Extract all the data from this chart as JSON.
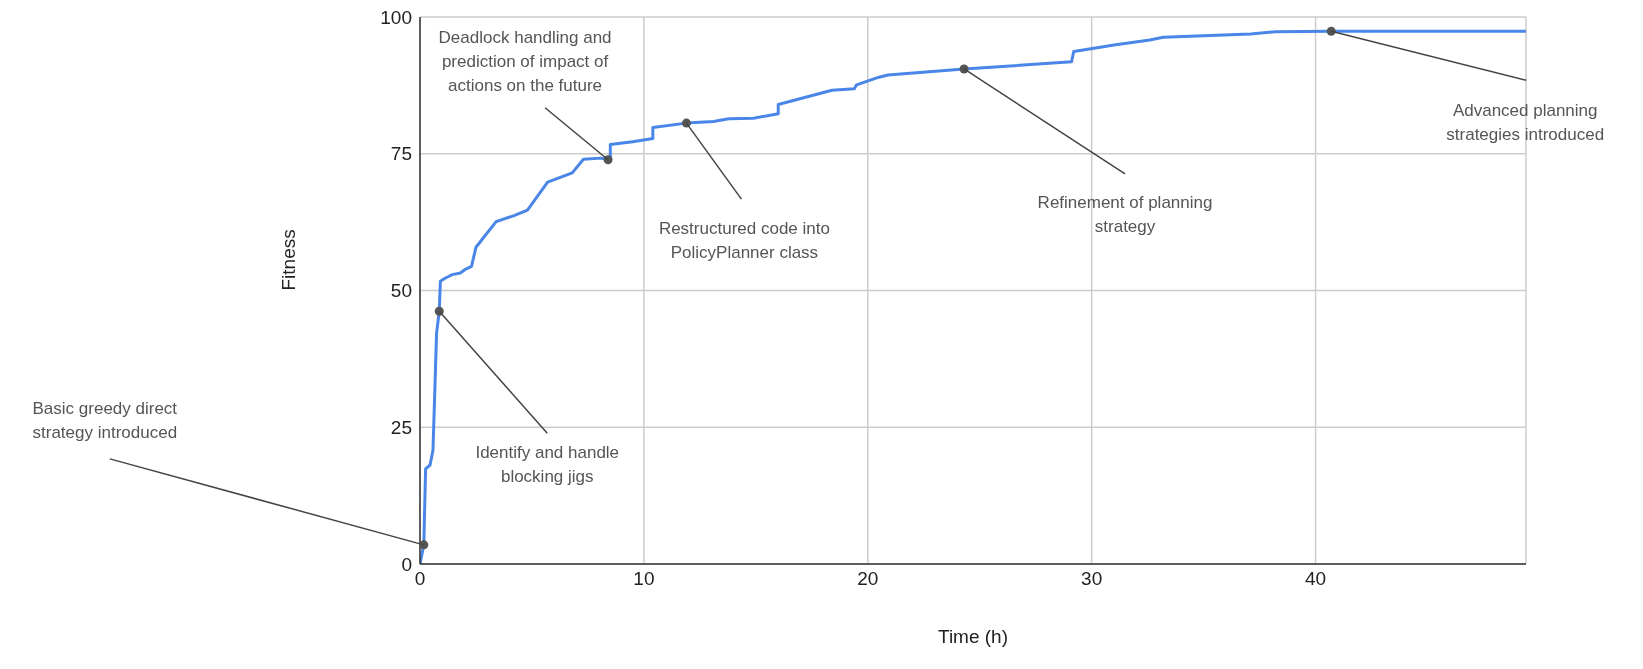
{
  "chart_data": {
    "type": "line",
    "xlabel": "Time (h)",
    "ylabel": "Fitness",
    "x": [
      0,
      0.17,
      0.25,
      0.45,
      0.58,
      0.74,
      0.86,
      0.91,
      1.1,
      1.44,
      1.8,
      2.0,
      2.3,
      2.5,
      3.4,
      4.2,
      4.8,
      5.7,
      6.8,
      7.3,
      8.1,
      8.4,
      8.5,
      8.5,
      9.5,
      10.4,
      10.4,
      11.9,
      13.1,
      13.8,
      14.9,
      16.0,
      16.0,
      18.4,
      19.4,
      19.5,
      20.5,
      20.9,
      24.3,
      29.1,
      29.2,
      31.0,
      32.6,
      33.2,
      37.1,
      38.2,
      40.7,
      49.4
    ],
    "values": [
      0,
      3.5,
      17.4,
      18.1,
      20.8,
      42.2,
      46.2,
      51.7,
      52.2,
      52.9,
      53.2,
      53.8,
      54.4,
      57.9,
      62.6,
      63.7,
      64.7,
      69.8,
      71.5,
      74.0,
      74.2,
      73.9,
      74.2,
      76.7,
      77.2,
      77.8,
      79.8,
      80.6,
      80.9,
      81.4,
      81.5,
      82.3,
      84.0,
      86.6,
      86.9,
      87.6,
      89.0,
      89.4,
      90.5,
      91.8,
      93.7,
      94.9,
      95.8,
      96.3,
      96.9,
      97.3,
      97.4,
      97.4
    ],
    "color": "#4a86e8",
    "xlim": [
      0,
      49.4
    ],
    "xticks": [
      0,
      10,
      20,
      30,
      40
    ],
    "ylim": [
      0,
      100
    ],
    "yticks": [
      0,
      25,
      50,
      75,
      100
    ],
    "grid": true,
    "annotations": [
      {
        "text": "Basic greedy direct strategy introduced",
        "x": 0.17,
        "y": 3.5
      },
      {
        "text": "Identify and handle blocking jigs",
        "x": 0.86,
        "y": 46.2
      },
      {
        "text": "Deadlock handling and prediction of impact of actions on the future",
        "x": 8.4,
        "y": 73.9
      },
      {
        "text": "Restructured code into PolicyPlanner class",
        "x": 11.9,
        "y": 80.6
      },
      {
        "text": "Refinement of planning strategy",
        "x": 24.3,
        "y": 90.5
      },
      {
        "text": "Advanced planning strategies introduced",
        "x": 40.7,
        "y": 97.4
      }
    ]
  }
}
